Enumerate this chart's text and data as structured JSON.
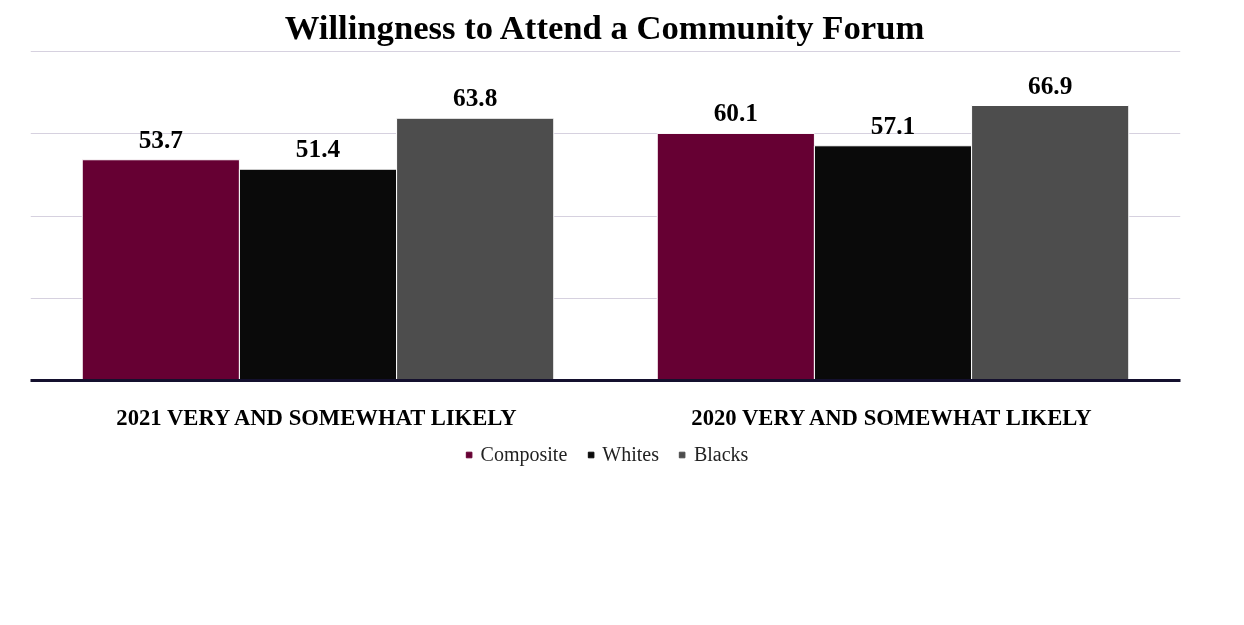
{
  "chart_data": {
    "type": "bar",
    "title": "Willingness to Attend a Community Forum",
    "categories": [
      "2021 VERY AND SOMEWHAT LIKELY",
      "2020 VERY AND SOMEWHAT LIKELY"
    ],
    "series": [
      {
        "name": "Composite",
        "color": "#660033",
        "values": [
          53.7,
          60.1
        ]
      },
      {
        "name": "Whites",
        "color": "#0a0a0a",
        "values": [
          51.4,
          57.1
        ]
      },
      {
        "name": "Blacks",
        "color": "#4d4d4d",
        "values": [
          63.8,
          66.9
        ]
      }
    ],
    "grid": "y",
    "tick_labels": "x",
    "data_labels": true,
    "legend": "bottom"
  }
}
